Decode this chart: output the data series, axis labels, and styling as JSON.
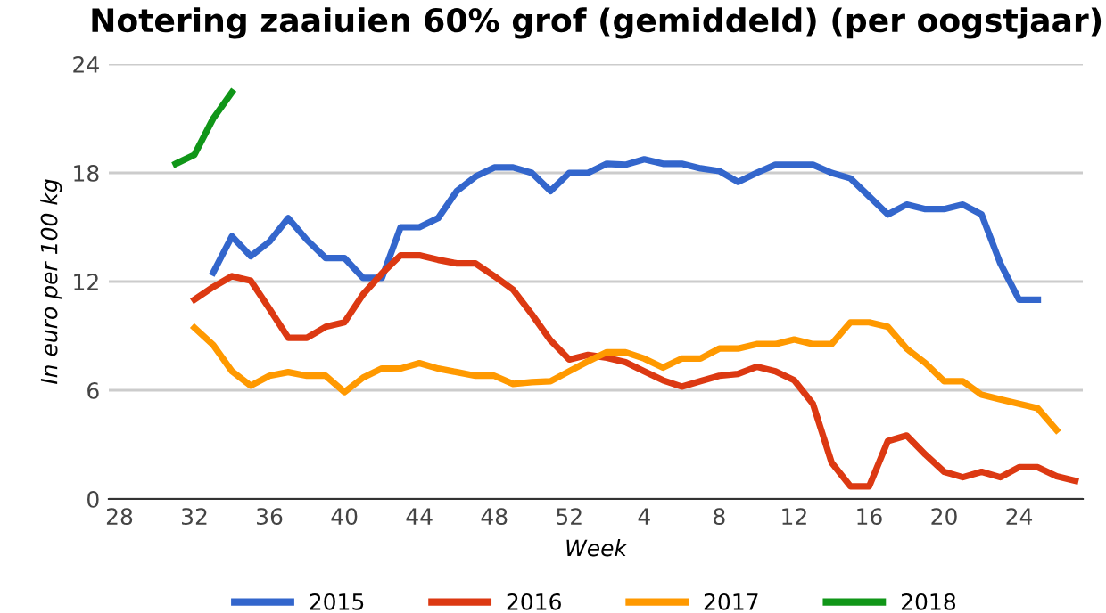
{
  "chart_data": {
    "type": "line",
    "title": "Notering zaaiuien 60% grof (gemiddeld) (per oogstjaar)",
    "xlabel": "Week",
    "ylabel": "In euro per 100 kg",
    "categories": [
      "28",
      null,
      null,
      null,
      "32",
      null,
      null,
      null,
      "36",
      null,
      null,
      null,
      "40",
      null,
      null,
      null,
      "44",
      null,
      null,
      null,
      "48",
      null,
      null,
      null,
      "52",
      null,
      null,
      null,
      "4",
      null,
      null,
      null,
      "8",
      null,
      null,
      null,
      "12",
      null,
      null,
      null,
      "16",
      null,
      null,
      null,
      "20",
      null,
      null,
      null,
      "24",
      null,
      null,
      null
    ],
    "ylim": [
      0,
      24
    ],
    "yticks": [
      0,
      6,
      12,
      18,
      24
    ],
    "grid": "y",
    "legend": "bottom",
    "line_style": "solid",
    "marker": "none",
    "series": [
      {
        "name": "2015",
        "color": "#3366cc",
        "values": [
          null,
          null,
          null,
          null,
          null,
          12.5,
          14.5,
          13.4,
          14.2,
          15.5,
          14.3,
          13.3,
          13.3,
          12.2,
          12.2,
          15.0,
          15.0,
          15.5,
          17.0,
          17.8,
          18.3,
          18.3,
          18.0,
          17.0,
          18.0,
          18.0,
          18.5,
          18.45,
          18.75,
          18.5,
          18.5,
          18.25,
          18.1,
          17.5,
          18.0,
          18.45,
          18.45,
          18.45,
          18.0,
          17.7,
          16.7,
          15.7,
          16.25,
          16.0,
          16.0,
          16.25,
          15.7,
          13.0,
          11.0,
          11.0,
          null,
          null
        ]
      },
      {
        "name": "2016",
        "color": "#dc3912",
        "values": [
          null,
          null,
          null,
          null,
          11.0,
          11.7,
          12.3,
          12.05,
          10.5,
          8.9,
          8.9,
          9.5,
          9.75,
          11.3,
          12.45,
          13.45,
          13.45,
          13.2,
          13.0,
          13.0,
          12.3,
          11.55,
          10.2,
          8.75,
          7.7,
          7.95,
          7.8,
          7.55,
          7.05,
          6.55,
          6.2,
          6.5,
          6.8,
          6.9,
          7.3,
          7.05,
          6.55,
          5.25,
          2.0,
          0.7,
          0.7,
          3.2,
          3.5,
          2.45,
          1.5,
          1.2,
          1.5,
          1.2,
          1.75,
          1.75,
          1.25,
          1.0
        ]
      },
      {
        "name": "2017",
        "color": "#ff9900",
        "values": [
          null,
          null,
          null,
          null,
          9.45,
          8.5,
          7.05,
          6.25,
          6.8,
          7.0,
          6.8,
          6.8,
          5.9,
          6.7,
          7.2,
          7.2,
          7.5,
          7.2,
          7.0,
          6.8,
          6.8,
          6.35,
          6.45,
          6.5,
          7.05,
          7.6,
          8.1,
          8.1,
          7.75,
          7.25,
          7.75,
          7.75,
          8.3,
          8.3,
          8.55,
          8.55,
          8.8,
          8.55,
          8.55,
          9.75,
          9.75,
          9.5,
          8.3,
          7.5,
          6.5,
          6.5,
          5.75,
          5.5,
          5.25,
          5.0,
          3.8,
          null
        ]
      },
      {
        "name": "2018",
        "color": "#109618",
        "values": [
          null,
          null,
          null,
          18.5,
          19.0,
          21.0,
          22.45,
          null,
          null,
          null,
          null,
          null,
          null,
          null,
          null,
          null,
          null,
          null,
          null,
          null,
          null,
          null,
          null,
          null,
          null,
          null,
          null,
          null,
          null,
          null,
          null,
          null,
          null,
          null,
          null,
          null,
          null,
          null,
          null,
          null,
          null,
          null,
          null,
          null,
          null,
          null,
          null,
          null,
          null,
          null,
          null,
          null
        ]
      }
    ]
  }
}
